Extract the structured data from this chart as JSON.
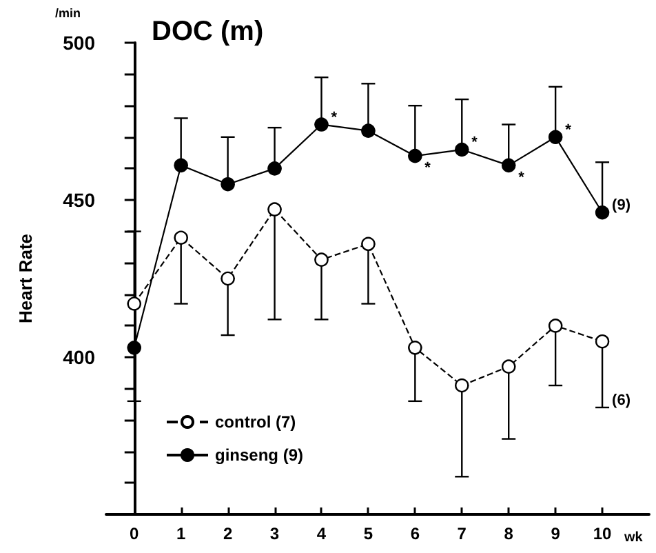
{
  "chart_data": {
    "type": "line",
    "title": "DOC (m)",
    "xlabel": "wk",
    "ylabel": "Heart Rate",
    "x": [
      0,
      1,
      2,
      3,
      4,
      5,
      6,
      7,
      8,
      9,
      10
    ],
    "xlim": [
      -0.6,
      11
    ],
    "xticks": [
      0,
      1,
      2,
      3,
      4,
      5,
      6,
      7,
      8,
      9,
      10
    ],
    "ylim": [
      350,
      500
    ],
    "yticks": [
      {
        "value": 360,
        "label": null
      },
      {
        "value": 370,
        "label": null
      },
      {
        "value": 380,
        "label": null
      },
      {
        "value": 390,
        "label": null
      },
      400,
      {
        "value": 410,
        "label": null
      },
      {
        "value": 420,
        "label": null
      },
      {
        "value": 430,
        "label": null
      },
      {
        "value": 440,
        "label": null
      },
      450,
      {
        "value": 460,
        "label": null
      },
      {
        "value": 470,
        "label": null
      },
      {
        "value": 480,
        "label": null
      },
      {
        "value": 490,
        "label": null
      },
      500
    ],
    "series": [
      {
        "name": "control (7)",
        "color": "#000000",
        "line_style": "dashed",
        "values": [
          417,
          438,
          425,
          447,
          431,
          436,
          403,
          391,
          397,
          410,
          405
        ],
        "errors": [
          [
            417,
            440
          ],
          [
            417,
            438
          ],
          [
            407,
            425
          ],
          [
            412,
            447
          ],
          [
            412,
            431
          ],
          [
            417,
            436
          ],
          [
            386,
            403
          ],
          [
            362,
            391
          ],
          [
            374,
            397
          ],
          [
            391,
            410
          ],
          [
            384,
            405
          ]
        ]
      },
      {
        "name": "ginseng (9)",
        "color": "#000000",
        "line_style": "solid",
        "values": [
          403,
          461,
          455,
          460,
          474,
          472,
          464,
          466,
          461,
          470,
          446
        ],
        "errors": [
          [
            386,
            403
          ],
          [
            461,
            476
          ],
          [
            455,
            470
          ],
          [
            460,
            473
          ],
          [
            474,
            489
          ],
          [
            472,
            487
          ],
          [
            464,
            480
          ],
          [
            466,
            482
          ],
          [
            461,
            474
          ],
          [
            470,
            486
          ],
          [
            446,
            462
          ]
        ]
      }
    ],
    "marker": "circle",
    "grid": false,
    "legend": "bottom left",
    "annotations": [
      "/min",
      {
        "text": "*",
        "x": 4,
        "y": 474
      },
      {
        "text": "*",
        "x": 6,
        "y": 464
      },
      {
        "text": "*",
        "x": 7,
        "y": 466
      },
      {
        "text": "*",
        "x": 8,
        "y": 461
      },
      {
        "text": "*",
        "x": 9,
        "y": 470
      },
      {
        "text": "(9)",
        "x": 10,
        "y": 446
      },
      {
        "text": "(6)",
        "x": 10,
        "y": 384
      }
    ]
  }
}
